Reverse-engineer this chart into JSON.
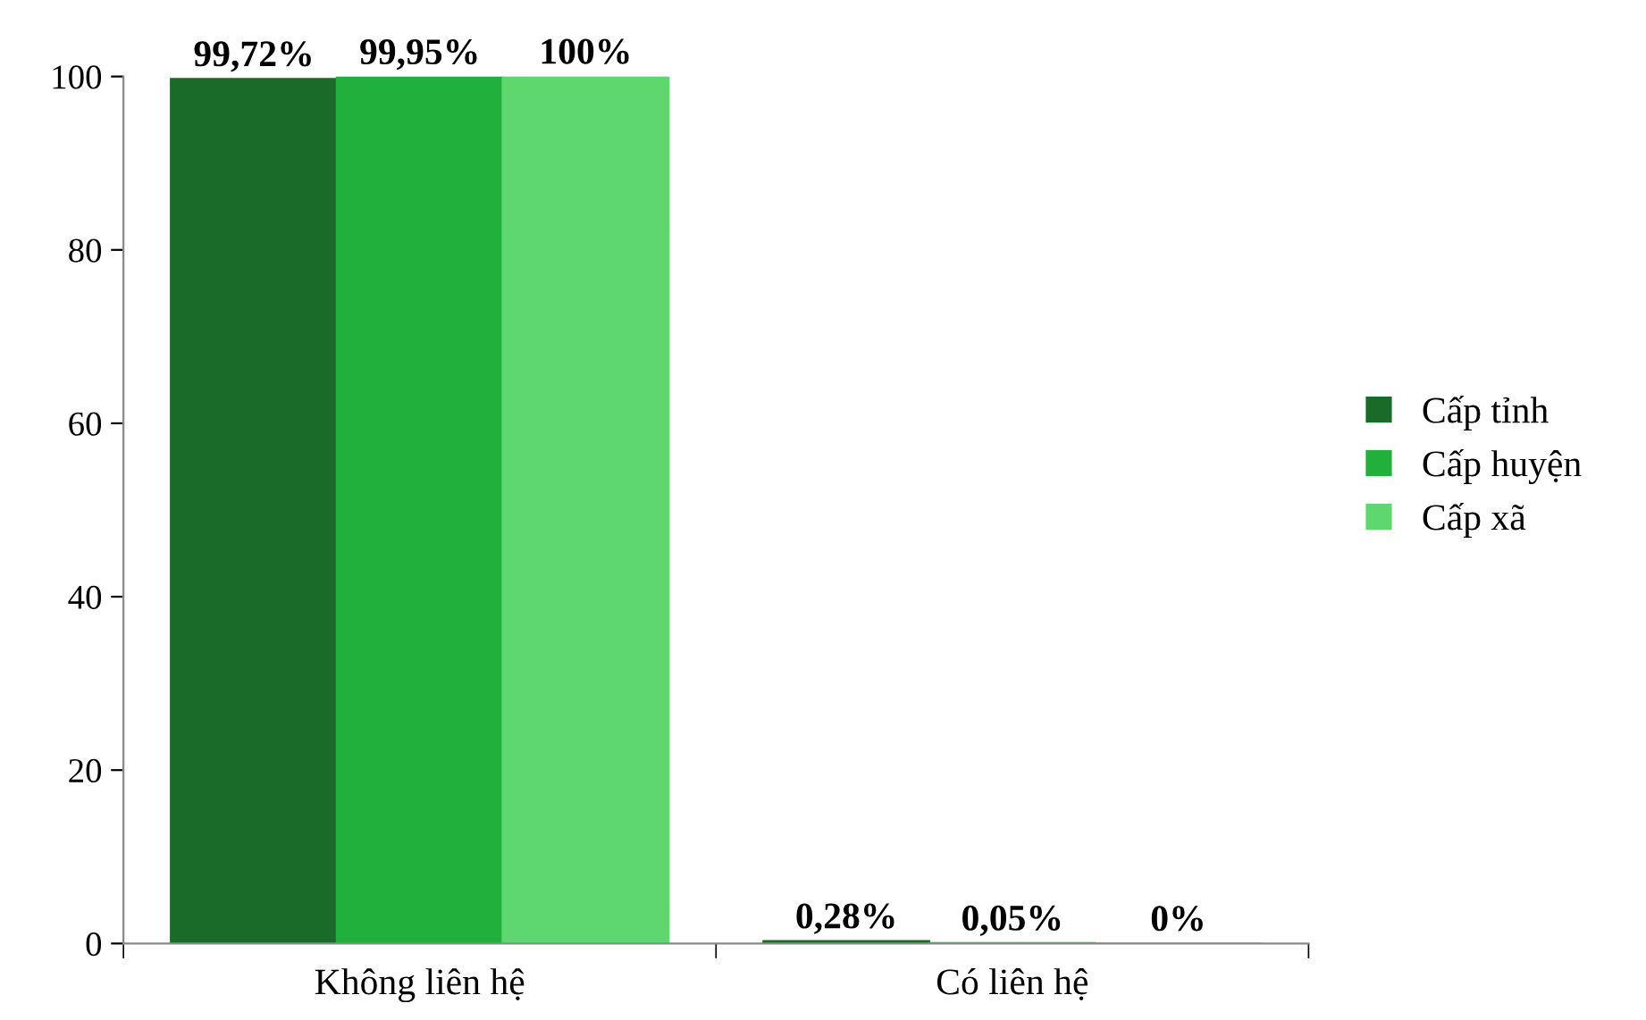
{
  "chart_data": {
    "type": "bar",
    "categories": [
      "Không liên hệ",
      "Có liên hệ"
    ],
    "series": [
      {
        "name": "Cấp tỉnh",
        "color": "#1a6b2a",
        "values": [
          99.72,
          0.28
        ],
        "value_labels": [
          "99,72%",
          "0,28%"
        ]
      },
      {
        "name": "Cấp huyện",
        "color": "#22b03c",
        "values": [
          99.95,
          0.05
        ],
        "value_labels": [
          "99,95%",
          "0,05%"
        ]
      },
      {
        "name": "Cấp xã",
        "color": "#5ed86e",
        "values": [
          100,
          0
        ],
        "value_labels": [
          "100%",
          "0%"
        ]
      }
    ],
    "ylim": [
      0,
      100
    ],
    "yticks": [
      0,
      20,
      40,
      60,
      80,
      100
    ],
    "grid": false,
    "legend": "right"
  }
}
